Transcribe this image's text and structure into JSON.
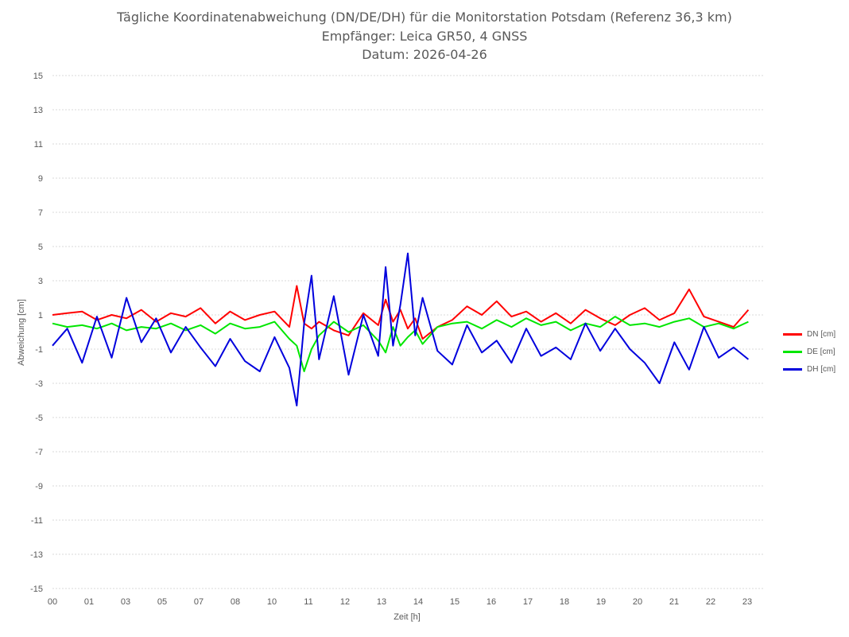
{
  "title_lines": [
    "Tägliche Koordinatenabweichung (DN/DE/DH) für die Monitorstation Potsdam (Referenz 36,3 km)",
    "Empfänger: Leica GR50, 4 GNSS",
    "Datum: 2026-04-26"
  ],
  "chart_data": {
    "type": "line",
    "title": "Tägliche Koordinatenabweichung (DN/DE/DH) für die Monitorstation Potsdam (Referenz 36,3 km)",
    "subtitle": "Empfänger: Leica GR50, 4 GNSS",
    "date": "Datum: 2026-04-26",
    "xlabel": "Zeit [h]",
    "ylabel": "Abweichung [cm]",
    "xlim": [
      0,
      24
    ],
    "ylim": [
      -15,
      15
    ],
    "x_ticks": [
      "00",
      "01",
      "03",
      "05",
      "07",
      "08",
      "10",
      "11",
      "12",
      "13",
      "14",
      "15",
      "16",
      "17",
      "18",
      "19",
      "20",
      "21",
      "22",
      "23"
    ],
    "y_ticks": [
      15,
      13,
      11,
      9,
      7,
      5,
      3,
      1,
      -1,
      -3,
      -5,
      -7,
      -9,
      -11,
      -13,
      -15
    ],
    "grid": true,
    "legend_position": "right",
    "x": [
      0.0,
      0.5,
      1.0,
      1.5,
      2.0,
      2.5,
      3.0,
      3.5,
      4.0,
      4.5,
      5.0,
      5.5,
      6.0,
      6.5,
      7.0,
      7.5,
      8.0,
      8.25,
      8.5,
      8.75,
      9.0,
      9.5,
      10.0,
      10.5,
      11.0,
      11.25,
      11.5,
      11.75,
      12.0,
      12.25,
      12.5,
      13.0,
      13.5,
      14.0,
      14.5,
      15.0,
      15.5,
      16.0,
      16.5,
      17.0,
      17.5,
      18.0,
      18.5,
      19.0,
      19.5,
      20.0,
      20.5,
      21.0,
      21.5,
      22.0,
      22.5,
      23.0,
      23.5
    ],
    "series": [
      {
        "name": "DN [cm]",
        "color": "#ff0000",
        "values": [
          1.0,
          1.1,
          1.2,
          0.7,
          1.0,
          0.8,
          1.3,
          0.6,
          1.1,
          0.9,
          1.4,
          0.5,
          1.2,
          0.7,
          1.0,
          1.2,
          0.3,
          2.7,
          0.5,
          0.2,
          0.6,
          0.1,
          -0.2,
          1.1,
          0.4,
          1.9,
          0.6,
          1.3,
          0.2,
          0.8,
          -0.4,
          0.3,
          0.7,
          1.5,
          1.0,
          1.8,
          0.9,
          1.2,
          0.6,
          1.1,
          0.5,
          1.3,
          0.8,
          0.4,
          1.0,
          1.4,
          0.7,
          1.1,
          2.5,
          0.9,
          0.6,
          0.3,
          1.3
        ]
      },
      {
        "name": "DE [cm]",
        "color": "#00e600",
        "values": [
          0.5,
          0.3,
          0.4,
          0.2,
          0.5,
          0.1,
          0.3,
          0.2,
          0.5,
          0.1,
          0.4,
          -0.1,
          0.5,
          0.2,
          0.3,
          0.6,
          -0.4,
          -0.8,
          -2.3,
          -1.0,
          -0.2,
          0.6,
          0.0,
          0.4,
          -0.5,
          -1.2,
          0.3,
          -0.8,
          -0.3,
          0.1,
          -0.7,
          0.3,
          0.5,
          0.6,
          0.2,
          0.7,
          0.3,
          0.8,
          0.4,
          0.6,
          0.1,
          0.5,
          0.3,
          0.9,
          0.4,
          0.5,
          0.3,
          0.6,
          0.8,
          0.3,
          0.5,
          0.2,
          0.6
        ]
      },
      {
        "name": "DH [cm]",
        "color": "#0000dd",
        "values": [
          -0.8,
          0.2,
          -1.8,
          0.9,
          -1.5,
          2.0,
          -0.6,
          0.8,
          -1.2,
          0.3,
          -0.9,
          -2.0,
          -0.4,
          -1.7,
          -2.3,
          -0.3,
          -2.1,
          -4.3,
          0.5,
          3.3,
          -1.6,
          2.1,
          -2.5,
          1.0,
          -1.4,
          3.8,
          -0.8,
          1.6,
          4.6,
          -0.2,
          2.0,
          -1.1,
          -1.9,
          0.4,
          -1.2,
          -0.5,
          -1.8,
          0.2,
          -1.4,
          -0.9,
          -1.6,
          0.5,
          -1.1,
          0.2,
          -1.0,
          -1.8,
          -3.0,
          -0.6,
          -2.2,
          0.3,
          -1.5,
          -0.9,
          -1.6
        ]
      }
    ]
  }
}
